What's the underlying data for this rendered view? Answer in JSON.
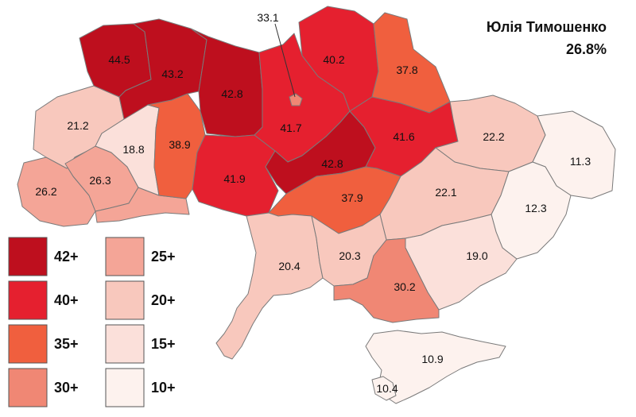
{
  "header": {
    "candidate": "Юлія Тимошенко",
    "total": "26.8%"
  },
  "colors": {
    "b42": "#be0f1e",
    "b40": "#e5202f",
    "b35": "#f05f3e",
    "b30": "#f08774",
    "b25": "#f4a597",
    "b20": "#f8c8bd",
    "b15": "#fbe0da",
    "b10": "#fdf2ee",
    "border": "#7a7a7a"
  },
  "legend": [
    {
      "label": "42+",
      "band": "b42"
    },
    {
      "label": "40+",
      "band": "b40"
    },
    {
      "label": "35+",
      "band": "b35"
    },
    {
      "label": "30+",
      "band": "b30"
    },
    {
      "label": "25+",
      "band": "b25"
    },
    {
      "label": "20+",
      "band": "b20"
    },
    {
      "label": "15+",
      "band": "b15"
    },
    {
      "label": "10+",
      "band": "b10"
    }
  ],
  "regions": [
    {
      "id": "volyn",
      "value": "44.5",
      "band": "b42"
    },
    {
      "id": "rivne",
      "value": "43.2",
      "band": "b42"
    },
    {
      "id": "zhytomyr",
      "value": "42.8",
      "band": "b42"
    },
    {
      "id": "kyiv-oblast",
      "value": "41.7",
      "band": "b40"
    },
    {
      "id": "kyiv-city",
      "value": "33.1",
      "band": "b30"
    },
    {
      "id": "chernihiv",
      "value": "40.2",
      "band": "b40"
    },
    {
      "id": "sumy",
      "value": "37.8",
      "band": "b35"
    },
    {
      "id": "lviv",
      "value": "21.2",
      "band": "b20"
    },
    {
      "id": "ternopil",
      "value": "18.8",
      "band": "b15"
    },
    {
      "id": "khmelnytskyi",
      "value": "38.9",
      "band": "b35"
    },
    {
      "id": "vinnytsia",
      "value": "41.9",
      "band": "b40"
    },
    {
      "id": "cherkasy",
      "value": "42.8",
      "band": "b42"
    },
    {
      "id": "poltava",
      "value": "41.6",
      "band": "b40"
    },
    {
      "id": "kharkiv",
      "value": "22.2",
      "band": "b20"
    },
    {
      "id": "luhansk",
      "value": "11.3",
      "band": "b10"
    },
    {
      "id": "zakarpattia",
      "value": "26.2",
      "band": "b25"
    },
    {
      "id": "ivano-frankivsk",
      "value": "26.3",
      "band": "b25"
    },
    {
      "id": "chernivtsi",
      "value": "",
      "band": "b25"
    },
    {
      "id": "kirovohrad",
      "value": "37.9",
      "band": "b35"
    },
    {
      "id": "dnipropetrovsk",
      "value": "22.1",
      "band": "b20"
    },
    {
      "id": "donetsk",
      "value": "12.3",
      "band": "b10"
    },
    {
      "id": "odesa",
      "value": "20.4",
      "band": "b20"
    },
    {
      "id": "mykolaiv",
      "value": "20.3",
      "band": "b20"
    },
    {
      "id": "zaporizhzhia",
      "value": "19.0",
      "band": "b15"
    },
    {
      "id": "kherson",
      "value": "30.2",
      "band": "b30"
    },
    {
      "id": "crimea",
      "value": "10.9",
      "band": "b10"
    },
    {
      "id": "sevastopol",
      "value": "10.4",
      "band": "b10"
    }
  ]
}
